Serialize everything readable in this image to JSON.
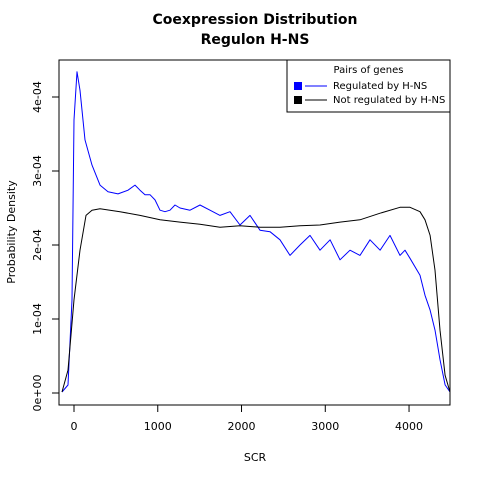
{
  "chart_data": {
    "type": "line",
    "title": "Coexpression Distribution",
    "subtitle": "Regulon H-NS",
    "xlabel": "SCR",
    "ylabel": "Probability Density",
    "xlim": [
      -179,
      4489
    ],
    "ylim": [
      -1.62e-05,
      0.00045
    ],
    "xticks": [
      0,
      1000,
      2000,
      3000,
      4000
    ],
    "yticks": [
      {
        "value": 0,
        "label": "0e+00"
      },
      {
        "value": 0.0001,
        "label": "1e-04"
      },
      {
        "value": 0.0002,
        "label": "2e-04"
      },
      {
        "value": 0.0003,
        "label": "3e-04"
      },
      {
        "value": 0.0004,
        "label": "4e-04"
      }
    ],
    "legend_title": "Pairs of genes",
    "legend_position": "top-right",
    "series": [
      {
        "name": "Regulated by  H-NS",
        "color": "#0000ff",
        "x": [
          -143,
          -72,
          -24,
          0,
          36,
          72,
          131,
          215,
          310,
          406,
          525,
          645,
          728,
          788,
          848,
          907,
          967,
          1027,
          1087,
          1146,
          1206,
          1266,
          1385,
          1504,
          1624,
          1743,
          1863,
          1982,
          2101,
          2221,
          2340,
          2460,
          2579,
          2698,
          2818,
          2937,
          3057,
          3176,
          3295,
          3415,
          3534,
          3654,
          3773,
          3892,
          3952,
          4012,
          4131,
          4191,
          4251,
          4310,
          4370,
          4430,
          4489
        ],
        "values": [
          1.4e-06,
          1.08e-05,
          0.000126,
          0.000369,
          0.000434,
          0.000409,
          0.000342,
          0.000308,
          0.000281,
          0.000272,
          0.000269,
          0.000274,
          0.000281,
          0.000274,
          0.000268,
          0.000268,
          0.000261,
          0.000247,
          0.000245,
          0.000247,
          0.000254,
          0.00025,
          0.000247,
          0.000254,
          0.000247,
          0.00024,
          0.000245,
          0.000227,
          0.00024,
          0.00022,
          0.000218,
          0.000207,
          0.000186,
          0.0002,
          0.000213,
          0.000193,
          0.000207,
          0.00018,
          0.000193,
          0.000186,
          0.000207,
          0.000193,
          0.000213,
          0.000186,
          0.000193,
          0.000182,
          0.000159,
          0.000132,
          0.000112,
          8.5e-05,
          4.5e-05,
          1.1e-05,
          1.4e-06
        ]
      },
      {
        "name": "Not regulated by  H-NS",
        "color": "#000000",
        "x": [
          -143,
          -72,
          0,
          72,
          143,
          215,
          310,
          549,
          788,
          1027,
          1266,
          1504,
          1743,
          1982,
          2221,
          2460,
          2698,
          2937,
          3176,
          3415,
          3654,
          3892,
          4012,
          4131,
          4191,
          4251,
          4310,
          4370,
          4430,
          4489
        ],
        "values": [
          1.4e-06,
          3.1e-05,
          0.000126,
          0.000193,
          0.00024,
          0.000247,
          0.000249,
          0.000245,
          0.00024,
          0.000234,
          0.000231,
          0.000228,
          0.000224,
          0.000226,
          0.000224,
          0.000224,
          0.000226,
          0.000227,
          0.000231,
          0.000234,
          0.000243,
          0.000251,
          0.000251,
          0.000245,
          0.000234,
          0.000213,
          0.000166,
          8.5e-05,
          2.4e-05,
          1.4e-06
        ]
      }
    ]
  }
}
